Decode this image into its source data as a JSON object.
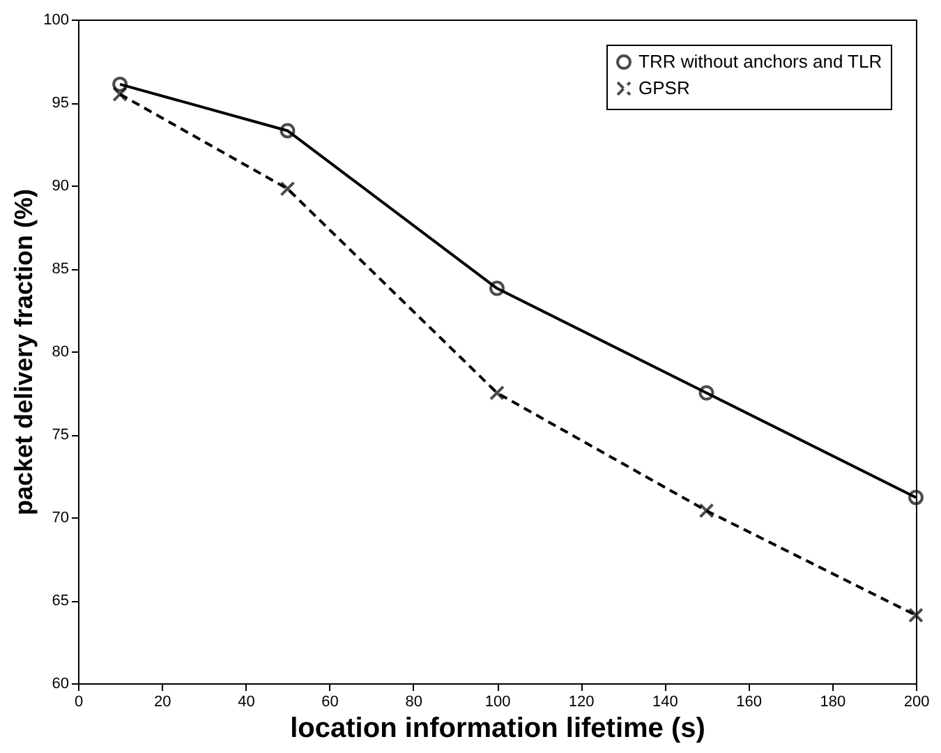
{
  "chart_data": {
    "type": "line",
    "xlabel": "location information lifetime (s)",
    "ylabel": "packet delivery fraction (%)",
    "x": [
      10,
      50,
      100,
      150,
      200
    ],
    "series": [
      {
        "name": "TRR without anchors and TLR",
        "color": "#000000",
        "values": [
          96.1,
          93.3,
          83.8,
          77.5,
          71.2
        ],
        "marker": "circle",
        "line_style": "solid"
      },
      {
        "name": "GPSR",
        "color": "#000000",
        "values": [
          95.5,
          89.8,
          77.5,
          70.4,
          64.1
        ],
        "marker": "cross",
        "line_style": "dashed"
      }
    ],
    "xlim": [
      0,
      200
    ],
    "xticks": [
      0,
      20,
      40,
      60,
      80,
      100,
      120,
      140,
      160,
      180,
      200
    ],
    "ylim": [
      60,
      100
    ],
    "yticks": [
      60,
      65,
      70,
      75,
      80,
      85,
      90,
      95,
      100
    ],
    "grid": false,
    "legend": "top right"
  }
}
